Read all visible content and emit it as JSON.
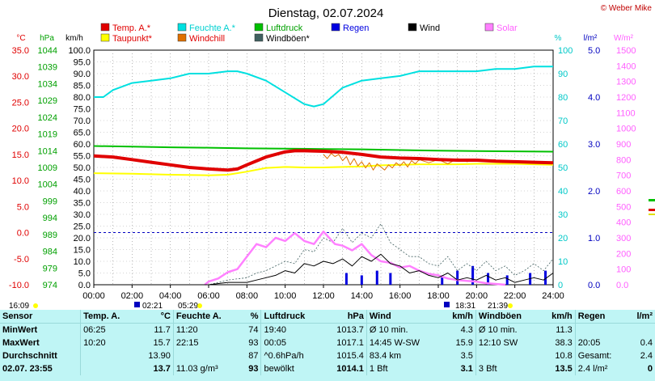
{
  "title": "Dienstag, 02.07.2024",
  "copyright": "© Weber Mike",
  "legend": [
    {
      "label": "Temp. A.*",
      "color": "#e00000"
    },
    {
      "label": "Feuchte A.*",
      "color": "#00e0e0"
    },
    {
      "label": "Luftdruck",
      "color": "#00c000"
    },
    {
      "label": "Regen",
      "color": "#0000e0"
    },
    {
      "label": "Wind",
      "color": "#000000"
    },
    {
      "label": "Solar",
      "color": "#ff80ff"
    },
    {
      "label": "Taupunkt*",
      "color": "#ffff00"
    },
    {
      "label": "Windchill",
      "color": "#e07000"
    },
    {
      "label": "Windböen*",
      "color": "#406060"
    }
  ],
  "axes": {
    "temp": {
      "unit": "°C",
      "color": "#e00000",
      "ticks": [
        "35.0",
        "30.0",
        "25.0",
        "20.0",
        "15.0",
        "10.0",
        "5.0",
        "0.0",
        "-5.0",
        "-10.0"
      ]
    },
    "pressure": {
      "unit": "hPa",
      "color": "#00a000",
      "ticks": [
        "1044",
        "1039",
        "1034",
        "1029",
        "1024",
        "1019",
        "1014",
        "1009",
        "1004",
        "999",
        "994",
        "989",
        "984",
        "979",
        "974"
      ]
    },
    "wind": {
      "unit": "km/h",
      "color": "#000000",
      "ticks": [
        "100.0",
        "95.0",
        "90.0",
        "85.0",
        "80.0",
        "75.0",
        "70.0",
        "65.0",
        "60.0",
        "55.0",
        "50.0",
        "45.0",
        "40.0",
        "35.0",
        "30.0",
        "25.0",
        "20.0",
        "15.0",
        "10.0",
        "5.0",
        "0.0"
      ]
    },
    "humidity": {
      "unit": "%",
      "color": "#00c8c8",
      "ticks": [
        "100",
        "90",
        "80",
        "70",
        "60",
        "50",
        "40",
        "30",
        "20",
        "10",
        "0"
      ]
    },
    "rain": {
      "unit": "l/m²",
      "color": "#0000c0",
      "ticks": [
        "5.0",
        "4.0",
        "3.0",
        "2.0",
        "1.0",
        "0.0"
      ]
    },
    "solar": {
      "unit": "W/m²",
      "color": "#ff60ff",
      "ticks": [
        "1500",
        "1400",
        "1300",
        "1200",
        "1100",
        "1000",
        "900",
        "800",
        "700",
        "600",
        "500",
        "400",
        "300",
        "200",
        "100",
        "0.0"
      ]
    },
    "time": {
      "ticks": [
        "00:00",
        "02:00",
        "04:00",
        "06:00",
        "08:00",
        "10:00",
        "12:00",
        "14:00",
        "16:00",
        "18:00",
        "20:00",
        "22:00",
        "24:00"
      ]
    }
  },
  "sun_times": [
    "16:09",
    "02:21",
    "05:29",
    "18:31",
    "21:39"
  ],
  "chart_data": {
    "type": "line",
    "x_unit": "hour",
    "xlim": [
      0,
      24
    ],
    "series": [
      {
        "name": "Temp. A.*",
        "axis": "temp",
        "color": "#e00000",
        "x": [
          0,
          1,
          2,
          3,
          4,
          5,
          6,
          7,
          7.5,
          8,
          9,
          10,
          10.5,
          11,
          12,
          13,
          14,
          15,
          16,
          17,
          18,
          19,
          20,
          21,
          22,
          23,
          24
        ],
        "y": [
          14.7,
          14.5,
          14.0,
          13.5,
          13.0,
          12.5,
          12.2,
          12.0,
          12.2,
          13.0,
          14.5,
          15.5,
          15.7,
          15.7,
          15.6,
          15.4,
          15.0,
          14.5,
          14.3,
          14.2,
          14.0,
          13.9,
          13.9,
          13.7,
          13.6,
          13.5,
          13.4
        ]
      },
      {
        "name": "Feuchte A.*",
        "axis": "humidity",
        "color": "#00e0e0",
        "x": [
          0,
          0.5,
          1,
          2,
          3,
          4,
          5,
          6,
          7,
          7.5,
          8,
          9,
          10,
          11,
          11.5,
          12,
          13,
          14,
          15,
          16,
          17,
          18,
          19,
          20,
          21,
          22,
          23,
          24
        ],
        "y": [
          80,
          80,
          83,
          86,
          87,
          88,
          90,
          90,
          91,
          91,
          90,
          87,
          82,
          77,
          76,
          77,
          84,
          87,
          88,
          89,
          91,
          91,
          91,
          91,
          92,
          92,
          93,
          93
        ]
      },
      {
        "name": "Luftdruck",
        "axis": "pressure",
        "color": "#00c000",
        "x": [
          0,
          2,
          4,
          6,
          8,
          10,
          12,
          14,
          16,
          18,
          20,
          22,
          24
        ],
        "y": [
          1015.4,
          1015.2,
          1015.0,
          1014.9,
          1014.7,
          1014.6,
          1014.5,
          1014.4,
          1014.2,
          1014.0,
          1013.9,
          1013.8,
          1013.7
        ]
      },
      {
        "name": "Taupunkt*",
        "axis": "temp",
        "color": "#ffff00",
        "x": [
          0,
          2,
          4,
          6,
          7,
          8,
          9,
          10,
          11,
          12,
          13,
          14,
          15,
          16,
          17,
          18,
          19,
          20,
          21,
          22,
          23,
          24
        ],
        "y": [
          11.4,
          11.3,
          11.1,
          11.0,
          11.1,
          11.7,
          12.4,
          12.6,
          12.5,
          12.5,
          12.6,
          12.7,
          12.9,
          13.0,
          13.1,
          13.1,
          13.1,
          13.2,
          13.2,
          13.2,
          13.1,
          13.0
        ]
      },
      {
        "name": "Windchill",
        "axis": "temp",
        "color": "#e07000",
        "x": [
          12,
          12.2,
          12.4,
          12.6,
          12.8,
          13,
          13.2,
          13.4,
          13.6,
          13.8,
          14,
          14.2,
          14.4,
          14.6,
          14.8,
          15,
          15.2,
          15.4,
          15.6,
          15.8,
          16,
          16.2,
          16.4,
          16.6,
          16.8,
          17,
          17.5,
          18,
          18.5,
          19,
          19.5,
          20,
          20.5,
          21
        ],
        "y": [
          15.0,
          14.2,
          15.2,
          14.6,
          15.0,
          13.8,
          14.6,
          13.0,
          14.2,
          12.8,
          13.6,
          12.4,
          13.4,
          12.0,
          13.2,
          12.6,
          12.0,
          13.0,
          12.4,
          13.4,
          12.8,
          13.6,
          12.6,
          13.8,
          13.2,
          14.0,
          13.4,
          14.0,
          13.2,
          14.2,
          13.6,
          14.0,
          13.8,
          14.0
        ]
      },
      {
        "name": "Wind",
        "axis": "wind",
        "color": "#000000",
        "x": [
          0,
          2,
          4,
          6,
          7,
          8,
          8.5,
          9,
          9.5,
          10,
          10.5,
          11,
          11.5,
          12,
          12.5,
          13,
          13.5,
          14,
          14.5,
          15,
          15.5,
          16,
          16.5,
          17,
          17.5,
          18,
          18.5,
          19,
          19.5,
          20,
          20.5,
          21,
          21.5,
          22,
          22.5,
          23,
          23.5,
          24
        ],
        "y": [
          0,
          0,
          0,
          0,
          1,
          1,
          2,
          3,
          4,
          6,
          5,
          9,
          8,
          10,
          9,
          11,
          8,
          12,
          10,
          13,
          9,
          8,
          5,
          6,
          4,
          3,
          5,
          2,
          3,
          2,
          4,
          2,
          3,
          1,
          2,
          3,
          2,
          5
        ]
      },
      {
        "name": "Windböen*",
        "axis": "wind",
        "color": "#406060",
        "x": [
          0,
          2,
          4,
          6,
          7,
          8,
          8.5,
          9,
          9.5,
          10,
          10.5,
          11,
          11.5,
          12,
          12.5,
          13,
          13.5,
          14,
          14.5,
          15,
          15.5,
          16,
          16.5,
          17,
          17.5,
          18,
          18.5,
          19,
          19.5,
          20,
          20.5,
          21,
          21.5,
          22,
          22.5,
          23,
          23.5,
          24
        ],
        "y": [
          0,
          0,
          0,
          0,
          2,
          3,
          5,
          6,
          8,
          10,
          9,
          15,
          14,
          20,
          18,
          24,
          18,
          22,
          20,
          26,
          18,
          15,
          12,
          12,
          9,
          8,
          12,
          6,
          9,
          6,
          10,
          6,
          8,
          4,
          6,
          9,
          6,
          11
        ]
      },
      {
        "name": "Solar",
        "axis": "solar",
        "color": "#ff80ff",
        "x": [
          5.8,
          6,
          6.5,
          7,
          7.5,
          8,
          8.5,
          9,
          9.5,
          10,
          10.5,
          11,
          11.5,
          12,
          12.3,
          12.6,
          13,
          13.5,
          14,
          14.5,
          15,
          15.5,
          16,
          16.5,
          17,
          17.5,
          18,
          18.5,
          19,
          19.5,
          20,
          20.5,
          21,
          21.5
        ],
        "y": [
          0,
          20,
          40,
          80,
          100,
          180,
          260,
          240,
          300,
          280,
          330,
          280,
          260,
          340,
          300,
          260,
          250,
          220,
          260,
          190,
          150,
          140,
          110,
          120,
          90,
          70,
          60,
          40,
          30,
          25,
          20,
          10,
          5,
          0
        ]
      },
      {
        "name": "Regen",
        "axis": "rain",
        "color": "#0000e0",
        "x": [
          13.2,
          14.0,
          14.8,
          15.5,
          18.2,
          19.0,
          19.8,
          20.6,
          21.6,
          22.8,
          23.6
        ],
        "y": [
          0.25,
          0.2,
          0.3,
          0.25,
          0.2,
          0.3,
          0.4,
          0.25,
          0.2,
          0.25,
          0.3
        ]
      }
    ]
  },
  "table": {
    "headers": [
      "Sensor",
      "Temp. A.",
      "°C",
      "Feuchte A.",
      "%",
      "Luftdruck",
      "hPa",
      "Wind",
      "km/h",
      "Windböen",
      "km/h",
      "Regen",
      "l/m²"
    ],
    "rows": [
      [
        "MinWert",
        "06:25",
        "11.7",
        "11:20",
        "74",
        "19:40",
        "1013.7",
        "Ø 10 min.",
        "4.3",
        "Ø 10 min.",
        "11.3",
        "",
        ""
      ],
      [
        "MaxWert",
        "10:20",
        "15.7",
        "22:15",
        "93",
        "00:05",
        "1017.1",
        "14:45 W-SW",
        "15.9",
        "12:10 SW",
        "38.3",
        "20:05",
        "0.4"
      ],
      [
        "Durchschnitt",
        "",
        "13.90",
        "",
        "87",
        "^0.6hPa/h",
        "1015.4",
        "83.4 km",
        "3.5",
        "",
        "10.8",
        "Gesamt:",
        "2.4"
      ],
      [
        "02.07. 23:55",
        "",
        "13.7",
        "11.03 g/m³",
        "93",
        "bewölkt",
        "1014.1",
        "1 Bft",
        "3.1",
        "3 Bft",
        "13.5",
        "2.4 l/m²",
        "0"
      ]
    ]
  }
}
